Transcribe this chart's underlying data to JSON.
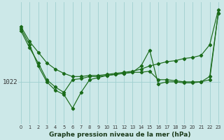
{
  "xlabel": "Graphe pression niveau de la mer (hPa)",
  "bg_color": "#cce8e8",
  "grid_color": "#9fcfcf",
  "line_color": "#1a6b1a",
  "x_labels": [
    "0",
    "1",
    "2",
    "3",
    "4",
    "5",
    "6",
    "7",
    "8",
    "9",
    "10",
    "11",
    "12",
    "13",
    "14",
    "15",
    "16",
    "17",
    "18",
    "19",
    "20",
    "21",
    "22",
    "23"
  ],
  "y_tick": 1022,
  "ylim": [
    1018.0,
    1029.5
  ],
  "xlim": [
    -0.3,
    23.3
  ],
  "series1": [
    1027.2,
    1025.8,
    1024.8,
    1023.8,
    1023.2,
    1022.8,
    1022.5,
    1022.5,
    1022.6,
    1022.6,
    1022.7,
    1022.8,
    1022.9,
    1023.0,
    1023.2,
    1023.5,
    1023.7,
    1023.9,
    1024.0,
    1024.2,
    1024.3,
    1024.5,
    1025.5,
    1028.8
  ],
  "series2": [
    1026.8,
    1025.2,
    1023.8,
    1022.2,
    1021.5,
    1021.0,
    1022.2,
    1022.3,
    1022.5,
    1022.5,
    1022.6,
    1022.7,
    1022.8,
    1022.9,
    1022.9,
    1023.0,
    1022.2,
    1022.2,
    1022.1,
    1022.0,
    1022.0,
    1022.0,
    1022.2,
    1028.5
  ],
  "series3": [
    1027.0,
    1025.5,
    1023.5,
    1022.0,
    1021.2,
    1020.8,
    1019.5,
    1021.0,
    1022.2,
    1022.4,
    1022.6,
    1022.7,
    1022.8,
    1022.9,
    1023.5,
    1025.0,
    1021.8,
    1022.0,
    1022.0,
    1021.9,
    1021.9,
    1022.0,
    1022.5,
    1028.5
  ]
}
